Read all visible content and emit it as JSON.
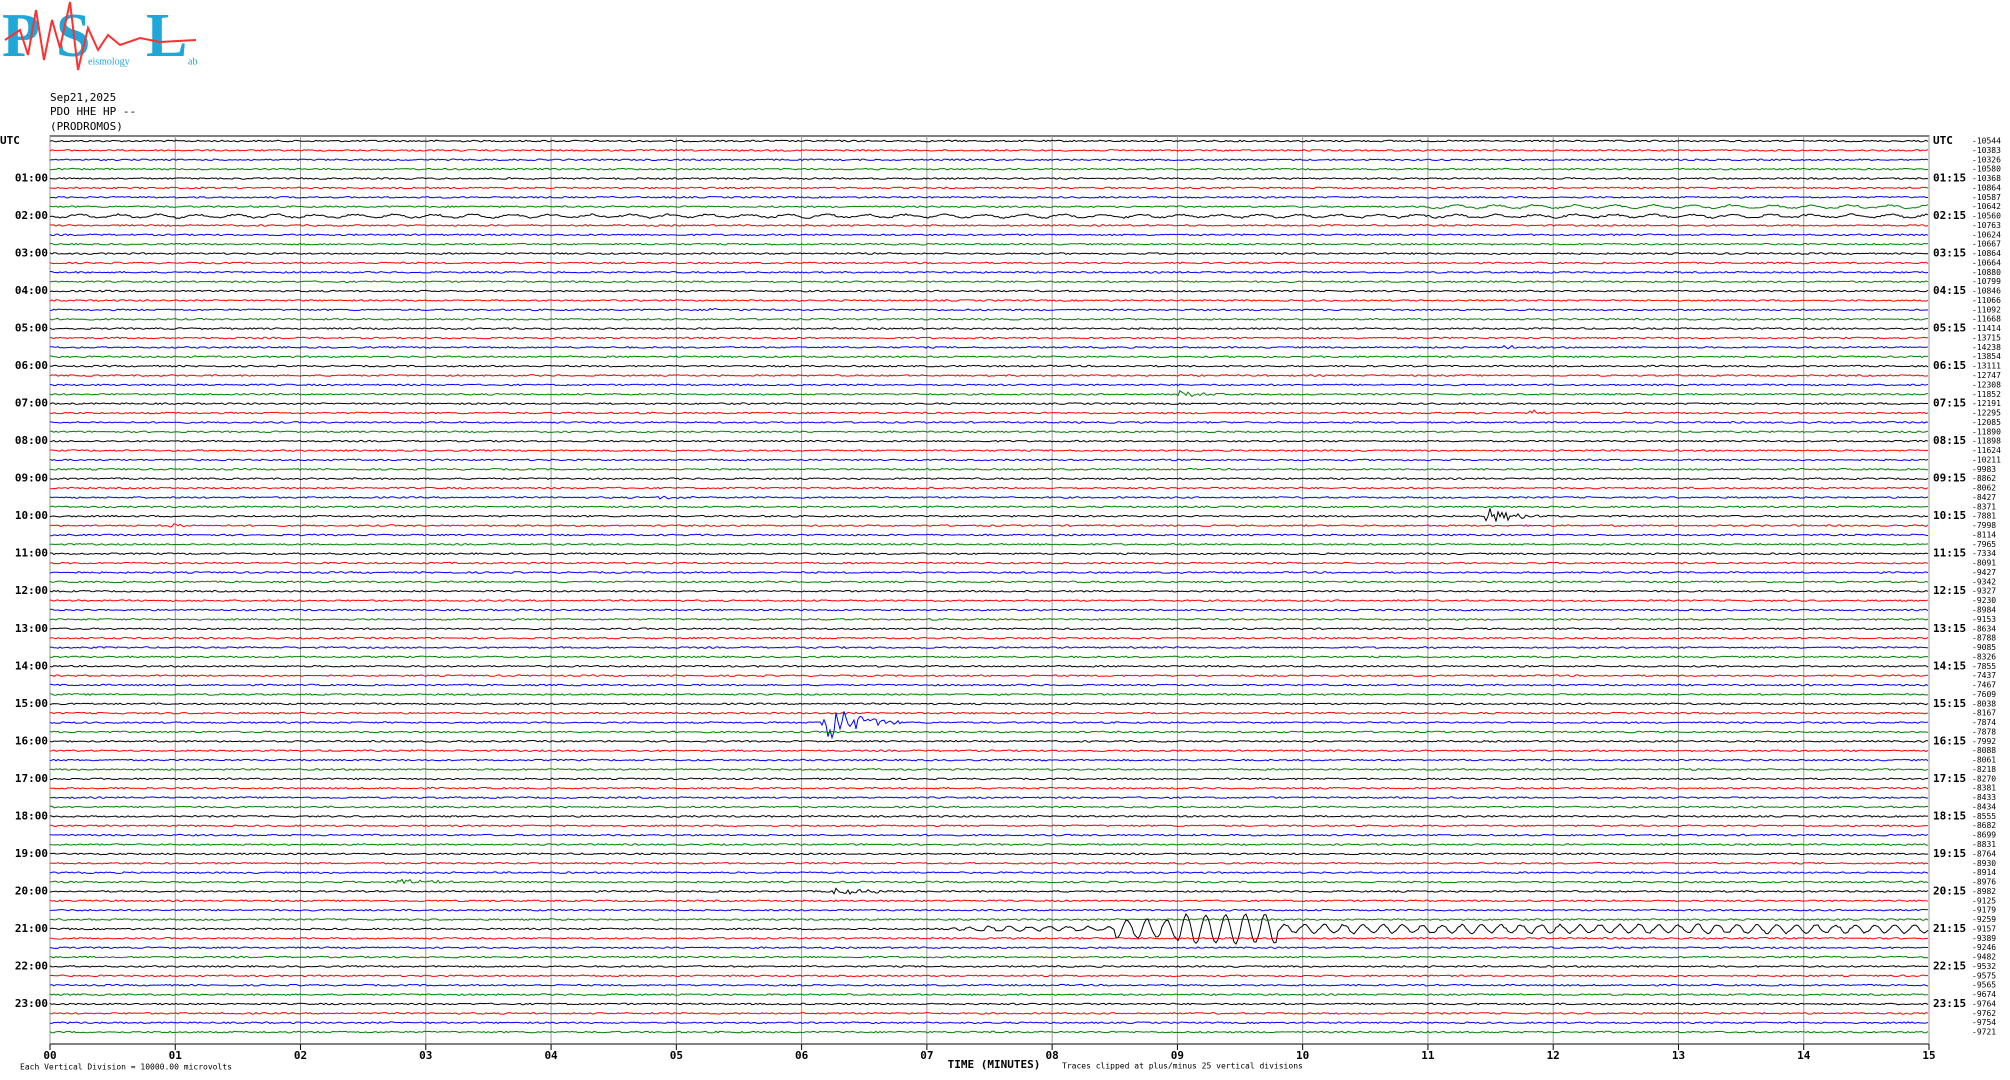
{
  "header": {
    "logo": [
      "P",
      "S",
      "L"
    ],
    "logo_small": [
      "eismology",
      "ab"
    ],
    "date": "Sep21,2025",
    "station": "PDO HHE HP --",
    "site": "(PRODROMOS)"
  },
  "left_labels": [
    "UTC",
    "01:00",
    "02:00",
    "03:00",
    "04:00",
    "05:00",
    "06:00",
    "07:00",
    "08:00",
    "09:00",
    "10:00",
    "11:00",
    "12:00",
    "13:00",
    "14:00",
    "15:00",
    "16:00",
    "17:00",
    "18:00",
    "19:00",
    "20:00",
    "21:00",
    "22:00",
    "23:00"
  ],
  "right_labels": [
    "UTC",
    "01:15",
    "02:15",
    "03:15",
    "04:15",
    "05:15",
    "06:15",
    "07:15",
    "08:15",
    "09:15",
    "10:15",
    "11:15",
    "12:15",
    "13:15",
    "14:15",
    "15:15",
    "16:15",
    "17:15",
    "18:15",
    "19:15",
    "20:15",
    "21:15",
    "22:15",
    "23:15"
  ],
  "trace_values": [
    -10544,
    -10383,
    -10326,
    -10580,
    -10368,
    -10864,
    -10587,
    -10642,
    -10560,
    -10763,
    -10624,
    -10667,
    -10864,
    -10664,
    -10880,
    -10799,
    -10846,
    -11066,
    -11092,
    -11668,
    -11414,
    -13715,
    -14238,
    -13854,
    -13111,
    -12747,
    -12308,
    -11852,
    -12191,
    -12295,
    -12085,
    -11890,
    -11898,
    -11624,
    -10211,
    -9983,
    -8862,
    -8062,
    -8427,
    -8371,
    -7881,
    -7998,
    -8114,
    -7965,
    -7334,
    -8091,
    -9427,
    -9342,
    -9327,
    -9230,
    -8984,
    -9153,
    -8634,
    -8788,
    -9085,
    -8326,
    -7855,
    -7437,
    -7467,
    -7609,
    -8038,
    -8167,
    -7874,
    -7878,
    -7992,
    -8088,
    -8061,
    -8218,
    -8270,
    -8381,
    -8433,
    -8434,
    -8555,
    -8682,
    -8699,
    -8831,
    -8764,
    -8930,
    -8914,
    -8976,
    -8982,
    -9125,
    -9179,
    -9259,
    -9157,
    -9389,
    -9246,
    -9482,
    -9532,
    -9575,
    -9565,
    -9674,
    -9764,
    -9762,
    -9754,
    -9721
  ],
  "trace_colors": [
    "#000000",
    "#ff0000",
    "#0000ff",
    "#008000"
  ],
  "minutes": [
    "00",
    "01",
    "02",
    "03",
    "04",
    "05",
    "06",
    "07",
    "08",
    "09",
    "10",
    "11",
    "12",
    "13",
    "14",
    "15"
  ],
  "x_axis_label": "TIME (MINUTES)",
  "scale_note": "Each Vertical Division = 10000.00 microvolts",
  "clip_note": "Traces clipped at plus/minus 25 vertical divisions"
}
